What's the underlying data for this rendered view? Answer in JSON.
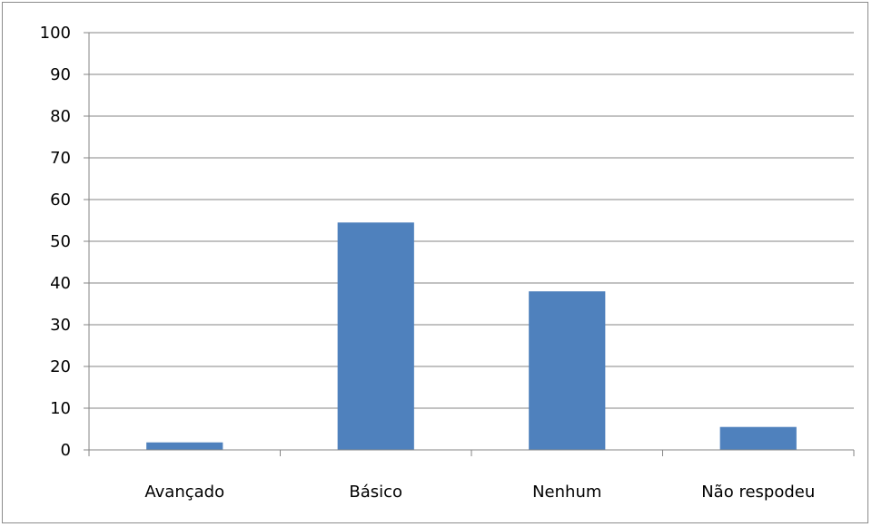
{
  "chart_data": {
    "type": "bar",
    "categories": [
      "Avançado",
      "Básico",
      "Nenhum",
      "Não respodeu"
    ],
    "values": [
      1.8,
      54.5,
      38.0,
      5.5
    ],
    "title": "",
    "xlabel": "",
    "ylabel": "",
    "ylim": [
      0,
      100
    ],
    "yticks": [
      "0",
      "10",
      "20",
      "30",
      "40",
      "50",
      "60",
      "70",
      "80",
      "90",
      "100"
    ],
    "grid": true,
    "legend": "none",
    "colors": {
      "bar": "#4f81bd",
      "grid": "#868686",
      "axis": "#868686"
    }
  }
}
